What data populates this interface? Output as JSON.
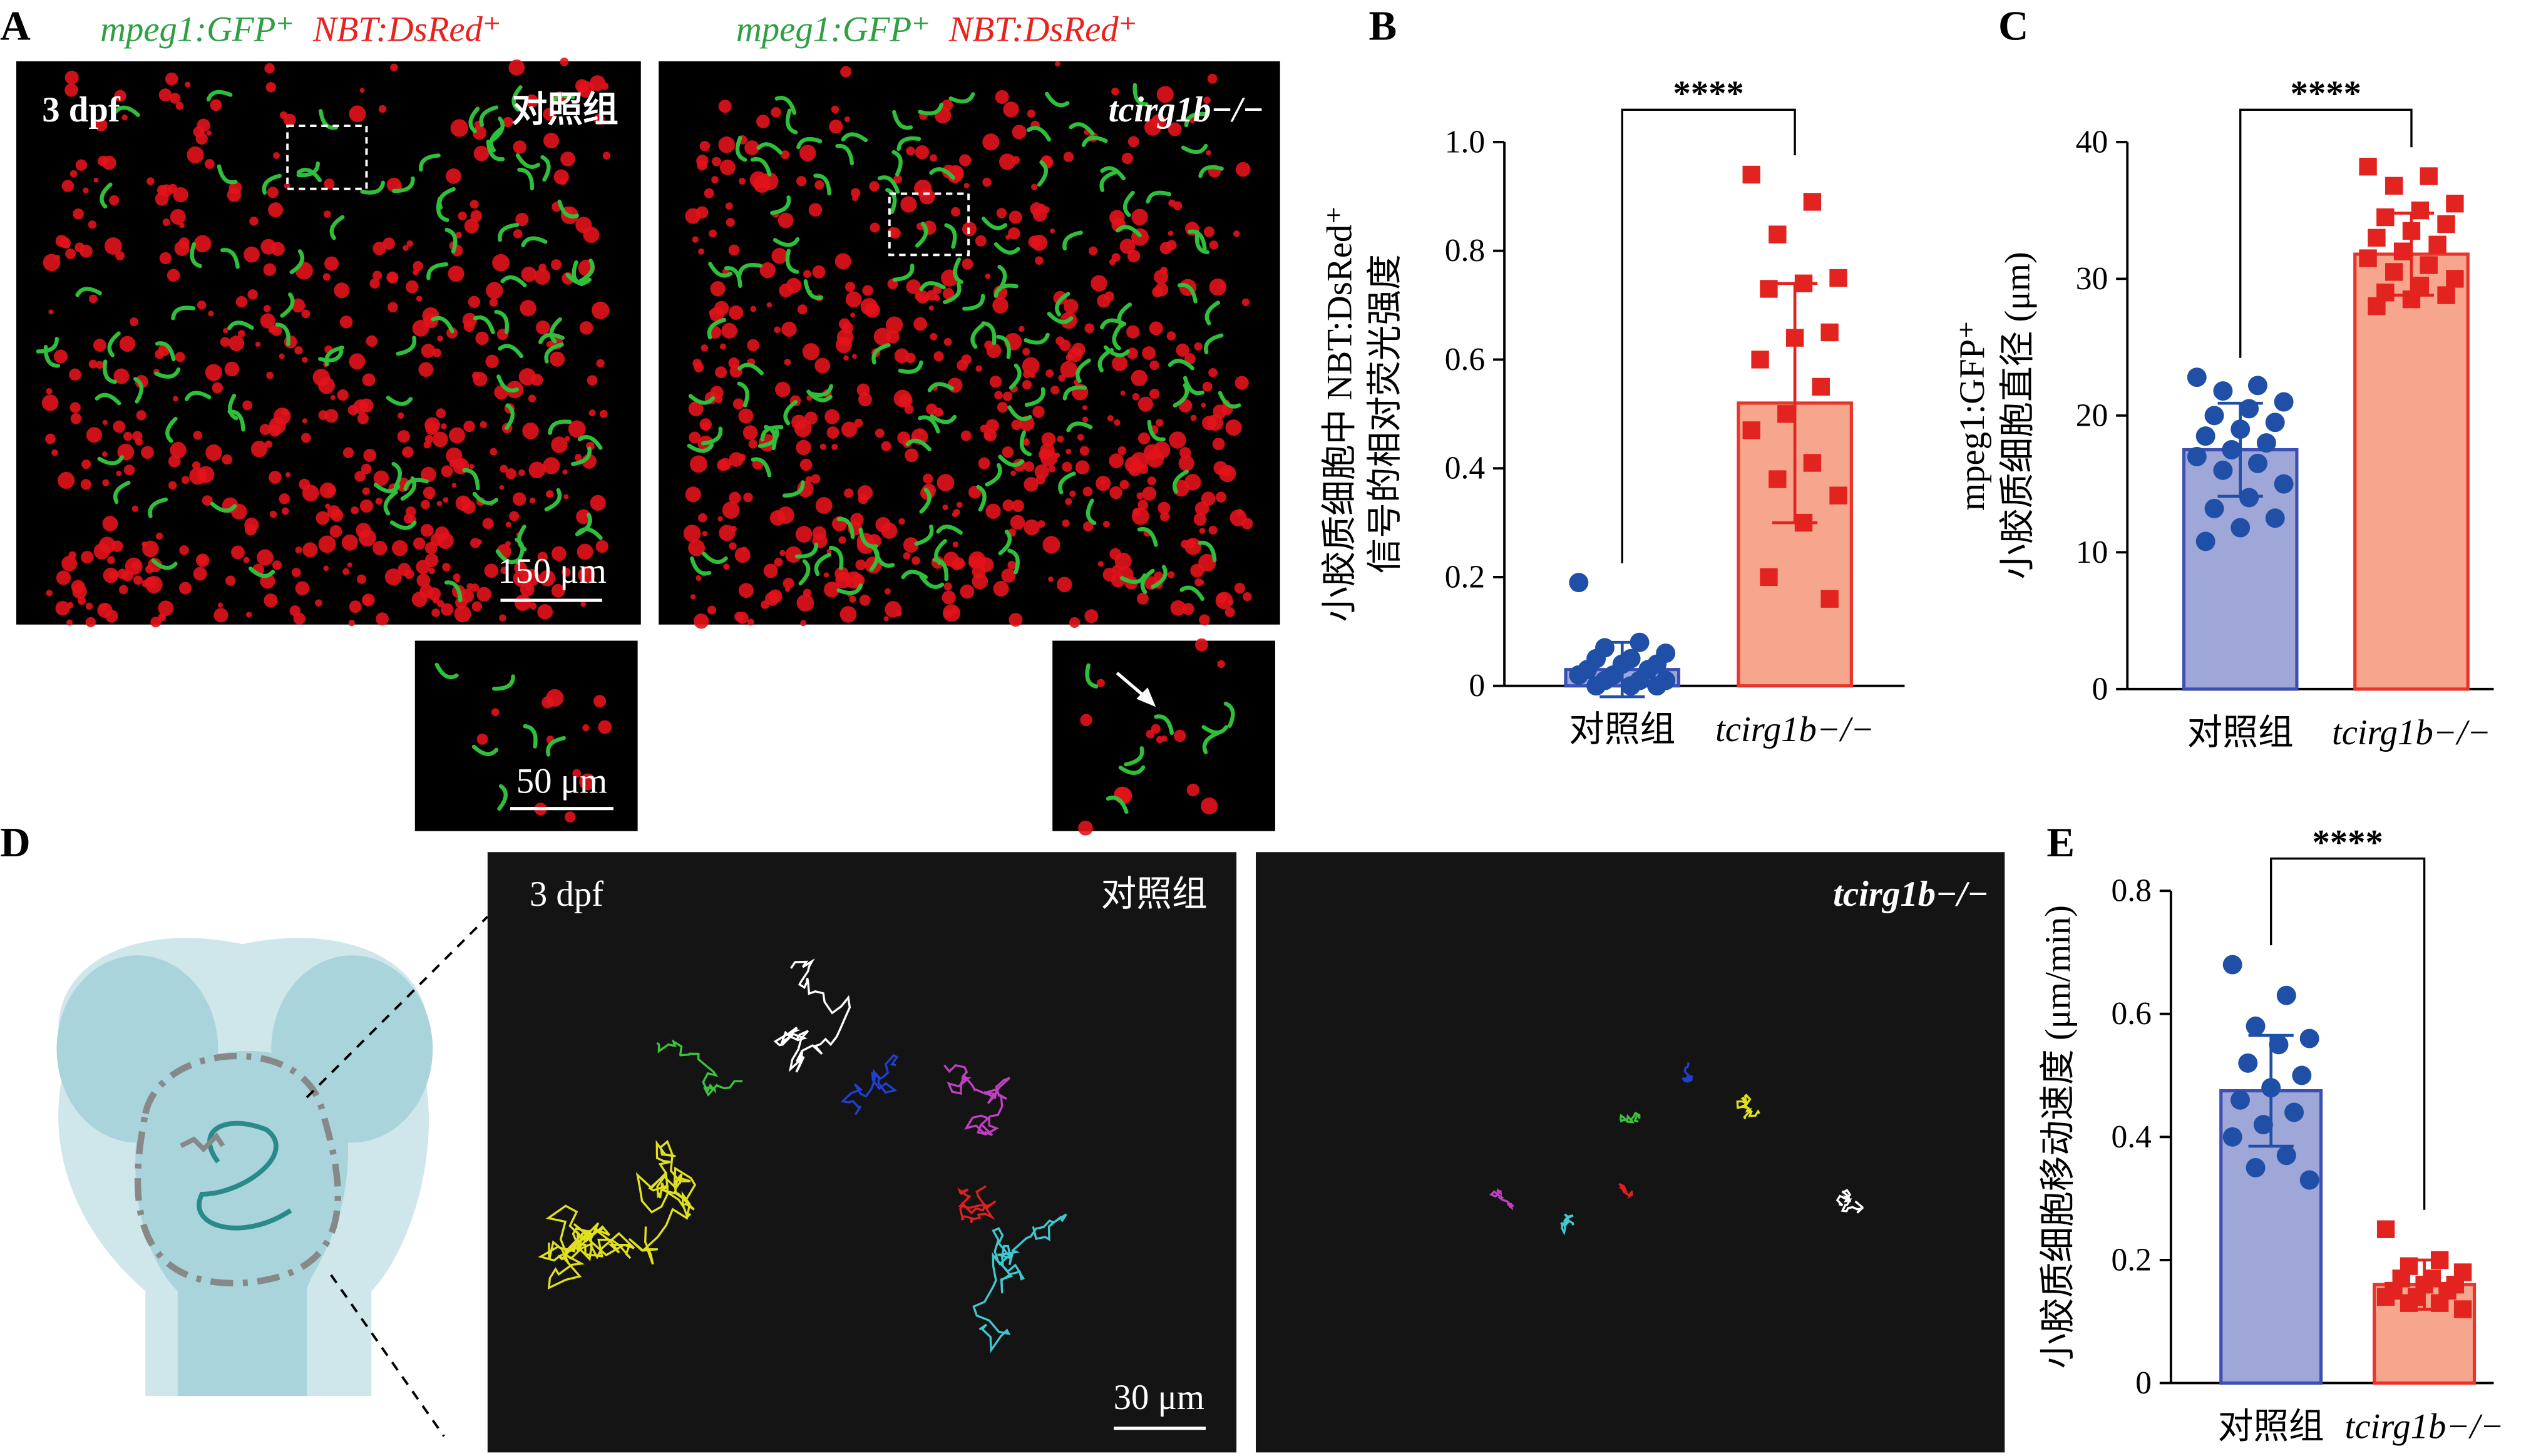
{
  "panel_labels": [
    "A",
    "B",
    "C",
    "D",
    "E"
  ],
  "panel_a": {
    "channel_green": "mpeg1:GFP⁺",
    "channel_red": "NBT:DsRed⁺",
    "stage": "3 dpf",
    "control": "对照组",
    "mutant": "tcirg1b−/−",
    "scale_main": "150 μm",
    "scale_inset": "50 μm"
  },
  "panel_d": {
    "stage": "3 dpf",
    "control": "对照组",
    "mutant": "tcirg1b−/−",
    "scale": "30 μm"
  },
  "chart_data": [
    {
      "type": "bar",
      "ylabel": [
        "小胶质细胞中 NBT:DsRed⁺",
        "信号的相对荧光强度"
      ],
      "categories": [
        "对照组",
        "tcirg1b−/−"
      ],
      "values": [
        0.03,
        0.52
      ],
      "errors": [
        0.05,
        0.22
      ],
      "points": [
        [
          0.19,
          0.08,
          0.07,
          0.06,
          0.05,
          0.05,
          0.04,
          0.04,
          0.03,
          0.03,
          0.02,
          0.02,
          0.01,
          0.01,
          0.01,
          0.0,
          0.0,
          0.0
        ],
        [
          0.94,
          0.89,
          0.83,
          0.75,
          0.74,
          0.73,
          0.65,
          0.64,
          0.6,
          0.55,
          0.5,
          0.47,
          0.41,
          0.38,
          0.35,
          0.3,
          0.2,
          0.16
        ]
      ],
      "colors": [
        "#9fa6d8",
        "#f5a68c"
      ],
      "edge_colors": [
        "#3c4fb4",
        "#e8342b"
      ],
      "point_colors": [
        "#1f4fa6",
        "#e2231f"
      ],
      "markers": [
        "circle",
        "square"
      ],
      "ylim": [
        0,
        1
      ],
      "yticks": [
        0,
        0.2,
        0.4,
        0.6,
        0.8,
        {
          "value": 1,
          "label": "1.0"
        }
      ],
      "significance": "****"
    },
    {
      "type": "bar",
      "ylabel": [
        "mpeg1:GFP⁺",
        "小胶质细胞直径 (μm)"
      ],
      "categories": [
        "对照组",
        "tcirg1b−/−"
      ],
      "values": [
        17.5,
        31.8
      ],
      "errors": [
        3.4,
        3.0
      ],
      "points": [
        [
          22.8,
          22.2,
          21.8,
          21.0,
          20.5,
          20.0,
          19.5,
          19.0,
          18.5,
          18.0,
          17.5,
          17.0,
          16.5,
          16.0,
          15.0,
          14.0,
          13.2,
          12.5,
          11.8,
          10.8
        ],
        [
          38.2,
          37.5,
          36.8,
          35.5,
          35.0,
          34.5,
          34.0,
          33.5,
          33.0,
          32.5,
          32.0,
          31.5,
          31.0,
          30.5,
          30.0,
          29.5,
          29.0,
          28.8,
          28.5,
          28.0
        ]
      ],
      "colors": [
        "#9fa6d8",
        "#f5a68c"
      ],
      "edge_colors": [
        "#3c4fb4",
        "#e8342b"
      ],
      "point_colors": [
        "#1f4fa6",
        "#e2231f"
      ],
      "markers": [
        "circle",
        "square"
      ],
      "ylim": [
        0,
        40
      ],
      "yticks": [
        0,
        10,
        20,
        30,
        40
      ],
      "significance": "****"
    },
    {
      "type": "bar",
      "ylabel": [
        "小胶质细胞移动速度 (μm/min)"
      ],
      "categories": [
        "对照组",
        "tcirg1b−/−"
      ],
      "values": [
        0.475,
        0.16
      ],
      "errors": [
        0.09,
        0.04
      ],
      "points": [
        [
          0.68,
          0.63,
          0.58,
          0.56,
          0.55,
          0.52,
          0.5,
          0.48,
          0.46,
          0.44,
          0.42,
          0.4,
          0.37,
          0.35,
          0.33
        ],
        [
          0.25,
          0.2,
          0.19,
          0.18,
          0.17,
          0.17,
          0.16,
          0.16,
          0.15,
          0.15,
          0.14,
          0.14,
          0.13,
          0.13,
          0.12
        ]
      ],
      "colors": [
        "#9fa6d8",
        "#f5a68c"
      ],
      "edge_colors": [
        "#3c4fb4",
        "#e8342b"
      ],
      "point_colors": [
        "#1f4fa6",
        "#e2231f"
      ],
      "markers": [
        "circle",
        "square"
      ],
      "ylim": [
        0,
        0.8
      ],
      "yticks": [
        0,
        0.2,
        0.4,
        0.6,
        0.8
      ],
      "significance": "****"
    }
  ]
}
